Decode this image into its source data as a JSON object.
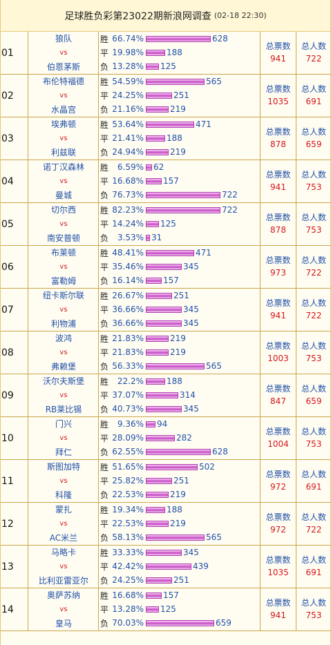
{
  "header": {
    "title": "足球胜负彩第23022期新浪网调查",
    "time": "(02-18 22:30)"
  },
  "labels": {
    "win": "胜",
    "draw": "平",
    "lose": "负",
    "vs": "vs",
    "total_votes": "总票数",
    "total_people": "总人数"
  },
  "bar_max": 722,
  "matches": [
    {
      "no": "01",
      "home": "狼队",
      "away": "伯恩茅斯",
      "win_pct": "66.74%",
      "win": 628,
      "draw_pct": "19.98%",
      "draw": 188,
      "lose_pct": "13.28%",
      "lose": 125,
      "votes": "941",
      "people": "722"
    },
    {
      "no": "02",
      "home": "布伦特福德",
      "away": "水晶宫",
      "win_pct": "54.59%",
      "win": 565,
      "draw_pct": "24.25%",
      "draw": 251,
      "lose_pct": "21.16%",
      "lose": 219,
      "votes": "1035",
      "people": "691"
    },
    {
      "no": "03",
      "home": "埃弗顿",
      "away": "利兹联",
      "win_pct": "53.64%",
      "win": 471,
      "draw_pct": "21.41%",
      "draw": 188,
      "lose_pct": "24.94%",
      "lose": 219,
      "votes": "878",
      "people": "659"
    },
    {
      "no": "04",
      "home": "诺丁汉森林",
      "away": "曼城",
      "win_pct": "6.59%",
      "win": 62,
      "draw_pct": "16.68%",
      "draw": 157,
      "lose_pct": "76.73%",
      "lose": 722,
      "votes": "941",
      "people": "753"
    },
    {
      "no": "05",
      "home": "切尔西",
      "away": "南安普顿",
      "win_pct": "82.23%",
      "win": 722,
      "draw_pct": "14.24%",
      "draw": 125,
      "lose_pct": "3.53%",
      "lose": 31,
      "votes": "878",
      "people": "753"
    },
    {
      "no": "06",
      "home": "布莱顿",
      "away": "富勒姆",
      "win_pct": "48.41%",
      "win": 471,
      "draw_pct": "35.46%",
      "draw": 345,
      "lose_pct": "16.14%",
      "lose": 157,
      "votes": "973",
      "people": "722"
    },
    {
      "no": "07",
      "home": "纽卡斯尔联",
      "away": "利物浦",
      "win_pct": "26.67%",
      "win": 251,
      "draw_pct": "36.66%",
      "draw": 345,
      "lose_pct": "36.66%",
      "lose": 345,
      "votes": "941",
      "people": "722"
    },
    {
      "no": "08",
      "home": "波鸿",
      "away": "弗赖堡",
      "win_pct": "21.83%",
      "win": 219,
      "draw_pct": "21.83%",
      "draw": 219,
      "lose_pct": "56.33%",
      "lose": 565,
      "votes": "1003",
      "people": "753"
    },
    {
      "no": "09",
      "home": "沃尔夫斯堡",
      "away": "RB莱比锡",
      "win_pct": "22.2%",
      "win": 188,
      "draw_pct": "37.07%",
      "draw": 314,
      "lose_pct": "40.73%",
      "lose": 345,
      "votes": "847",
      "people": "659"
    },
    {
      "no": "10",
      "home": "门兴",
      "away": "拜仁",
      "win_pct": "9.36%",
      "win": 94,
      "draw_pct": "28.09%",
      "draw": 282,
      "lose_pct": "62.55%",
      "lose": 628,
      "votes": "1004",
      "people": "753"
    },
    {
      "no": "11",
      "home": "斯图加特",
      "away": "科隆",
      "win_pct": "51.65%",
      "win": 502,
      "draw_pct": "25.82%",
      "draw": 251,
      "lose_pct": "22.53%",
      "lose": 219,
      "votes": "972",
      "people": "691"
    },
    {
      "no": "12",
      "home": "蒙扎",
      "away": "AC米兰",
      "win_pct": "19.34%",
      "win": 188,
      "draw_pct": "22.53%",
      "draw": 219,
      "lose_pct": "58.13%",
      "lose": 565,
      "votes": "972",
      "people": "722"
    },
    {
      "no": "13",
      "home": "马略卡",
      "away": "比利亚雷亚尔",
      "win_pct": "33.33%",
      "win": 345,
      "draw_pct": "42.42%",
      "draw": 439,
      "lose_pct": "24.25%",
      "lose": 251,
      "votes": "1035",
      "people": "691"
    },
    {
      "no": "14",
      "home": "奥萨苏纳",
      "away": "皇马",
      "win_pct": "16.68%",
      "win": 157,
      "draw_pct": "13.28%",
      "draw": 125,
      "lose_pct": "70.03%",
      "lose": 659,
      "votes": "941",
      "people": "753"
    }
  ]
}
